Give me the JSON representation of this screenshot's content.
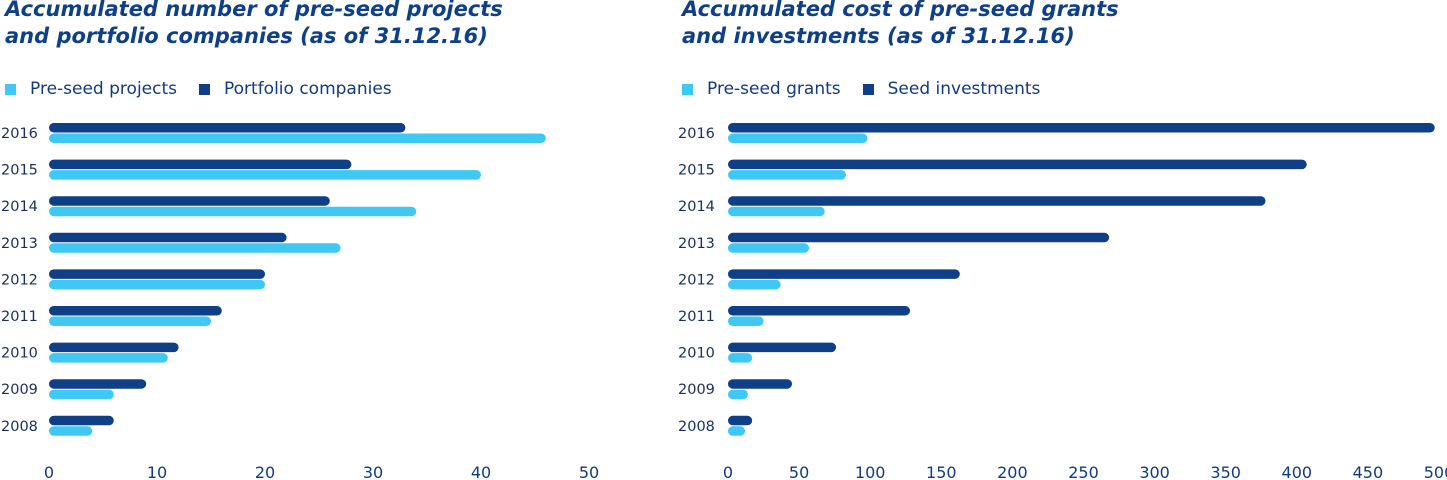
{
  "charts": [
    {
      "title_lines": [
        "Accumulated number of pre-seed projects",
        "and portfolio companies (as of 31.12.16)"
      ],
      "legend": [
        {
          "label": "Pre-seed projects",
          "color": "#3ec8f3"
        },
        {
          "label": "Portfolio companies",
          "color": "#0e3f87"
        }
      ]
    },
    {
      "title_lines": [
        "Accumulated cost of pre-seed grants",
        "and investments (as of 31.12.16)"
      ],
      "legend": [
        {
          "label": "Pre-seed grants",
          "color": "#3ec8f3"
        },
        {
          "label": "Seed investments",
          "color": "#0e3f87"
        }
      ]
    }
  ],
  "chart_data": [
    {
      "type": "bar",
      "orientation": "horizontal",
      "title": "Accumulated number of pre-seed projects and portfolio companies (as of 31.12.16)",
      "categories": [
        "2016",
        "2015",
        "2014",
        "2013",
        "2012",
        "2011",
        "2010",
        "2009",
        "2008"
      ],
      "series": [
        {
          "name": "Portfolio companies",
          "color": "#0e3f87",
          "values": [
            33,
            28,
            26,
            22,
            20,
            16,
            12,
            9,
            6
          ]
        },
        {
          "name": "Pre-seed projects",
          "color": "#3ec8f3",
          "values": [
            46,
            40,
            34,
            27,
            20,
            15,
            11,
            6,
            4
          ]
        }
      ],
      "xlim": [
        0,
        50
      ],
      "xticks": [
        0,
        10,
        20,
        30,
        40,
        50
      ],
      "legend_position": "top-left"
    },
    {
      "type": "bar",
      "orientation": "horizontal",
      "title": "Accumulated cost of pre-seed grants and investments (as of 31.12.16)",
      "categories": [
        "2016",
        "2015",
        "2014",
        "2013",
        "2012",
        "2011",
        "2010",
        "2009",
        "2008"
      ],
      "series": [
        {
          "name": "Seed investments",
          "color": "#0e3f87",
          "values": [
            497,
            407,
            378,
            268,
            163,
            128,
            76,
            45,
            17
          ]
        },
        {
          "name": "Pre-seed grants",
          "color": "#3ec8f3",
          "values": [
            98,
            83,
            68,
            57,
            37,
            25,
            17,
            14,
            12
          ]
        }
      ],
      "xlim": [
        0,
        500
      ],
      "xticks": [
        0,
        50,
        100,
        150,
        200,
        250,
        300,
        350,
        400,
        450,
        500
      ],
      "legend_position": "top-left"
    }
  ]
}
